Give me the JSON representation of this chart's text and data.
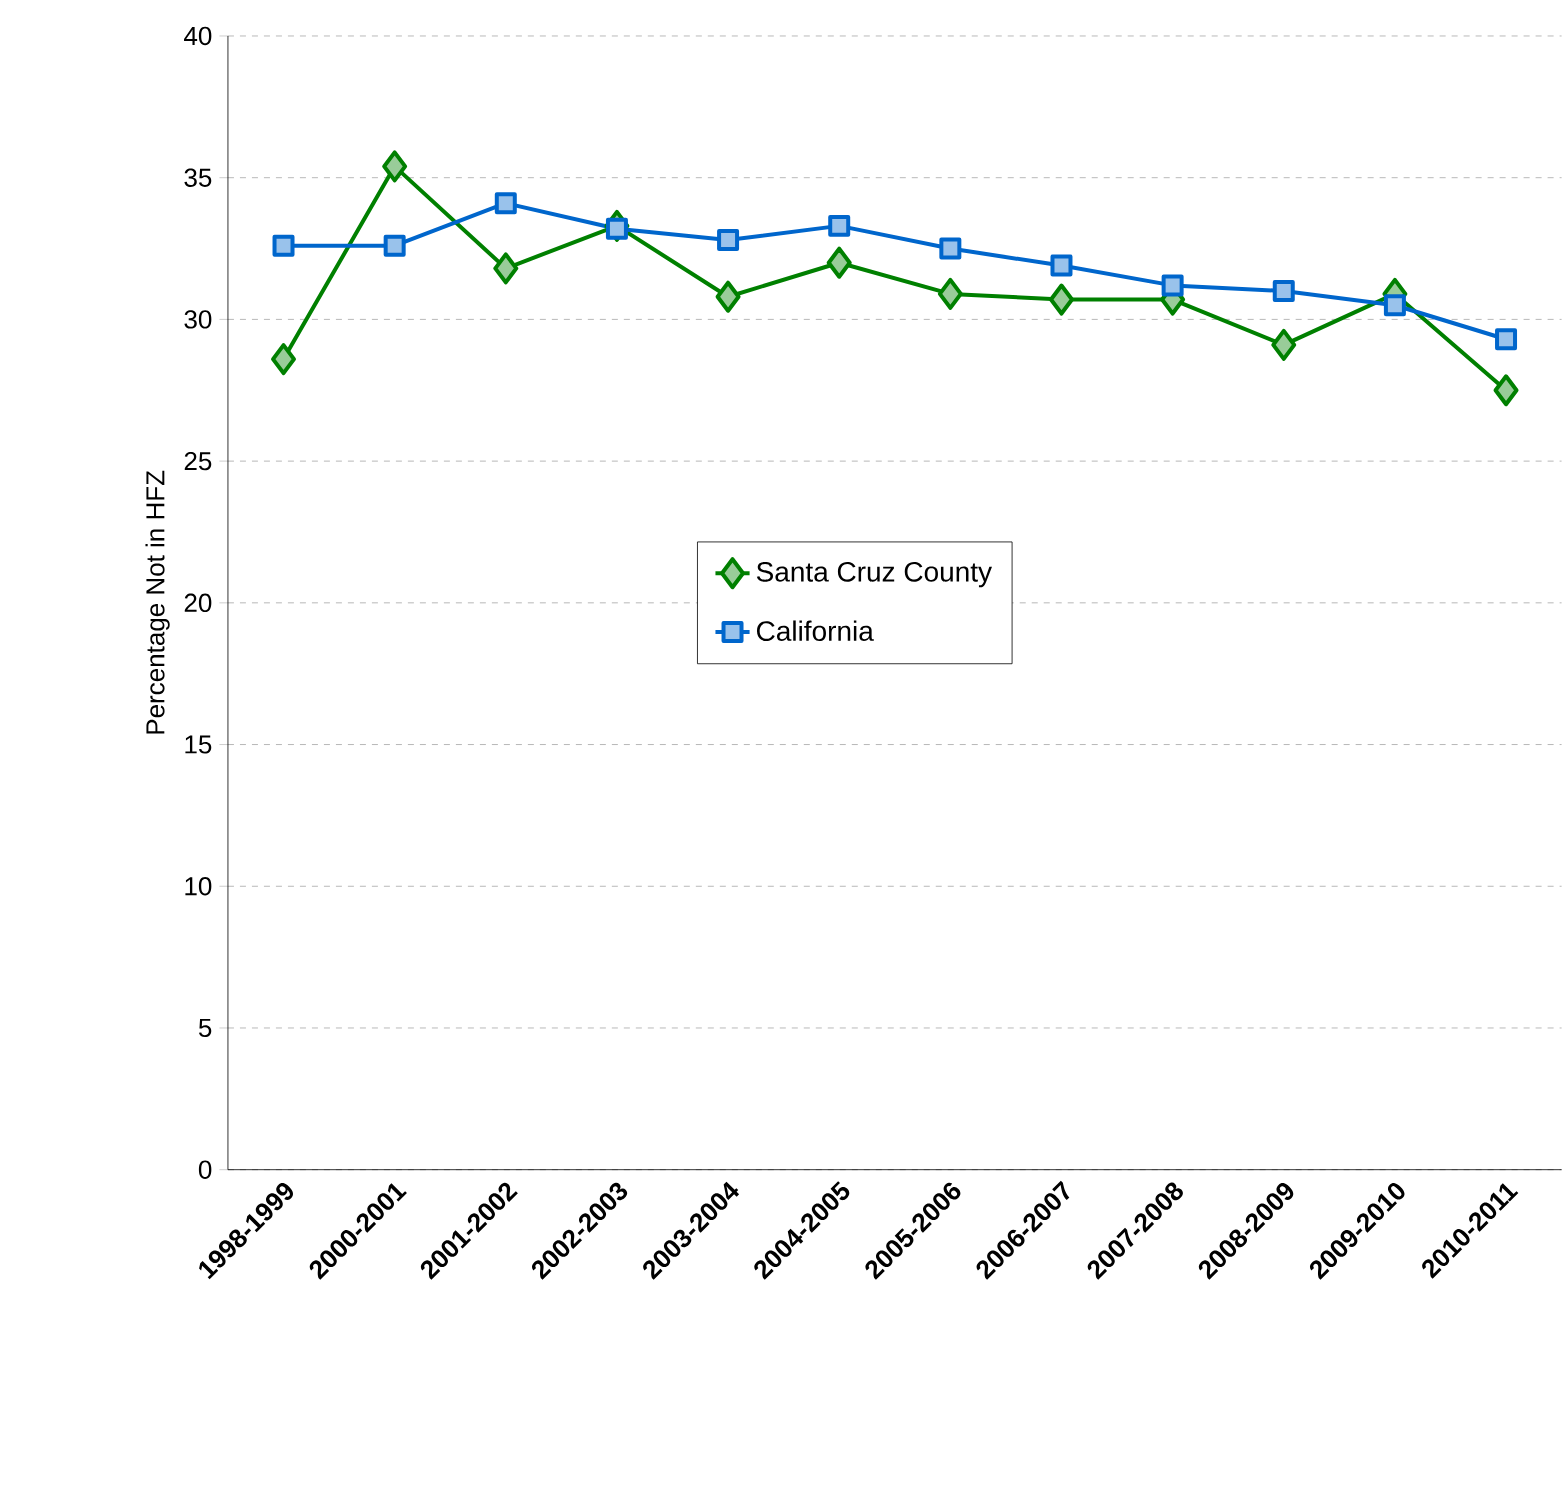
{
  "chart_data": {
    "type": "line",
    "ylabel": "Percentage Not in HFZ",
    "categories": [
      "1998-1999",
      "2000-2001",
      "2001-2002",
      "2002-2003",
      "2003-2004",
      "2004-2005",
      "2005-2006",
      "2006-2007",
      "2007-2008",
      "2008-2009",
      "2009-2010",
      "2010-2011"
    ],
    "series": [
      {
        "name": "Santa Cruz County",
        "color": "#008000",
        "marker": "diamond",
        "values": [
          28.6,
          35.4,
          31.8,
          33.3,
          30.8,
          32.0,
          30.9,
          30.7,
          30.7,
          29.1,
          30.9,
          27.5
        ]
      },
      {
        "name": "California",
        "color": "#0066cc",
        "marker": "square",
        "values": [
          32.6,
          32.6,
          34.1,
          33.2,
          32.8,
          33.3,
          32.5,
          31.9,
          31.2,
          31.0,
          30.5,
          29.3
        ]
      }
    ],
    "ylim": [
      0,
      40
    ],
    "yticks": [
      0,
      5,
      10,
      15,
      20,
      25,
      30,
      35,
      40
    ],
    "grid": "y",
    "legend": "center",
    "line_style": "solid"
  }
}
